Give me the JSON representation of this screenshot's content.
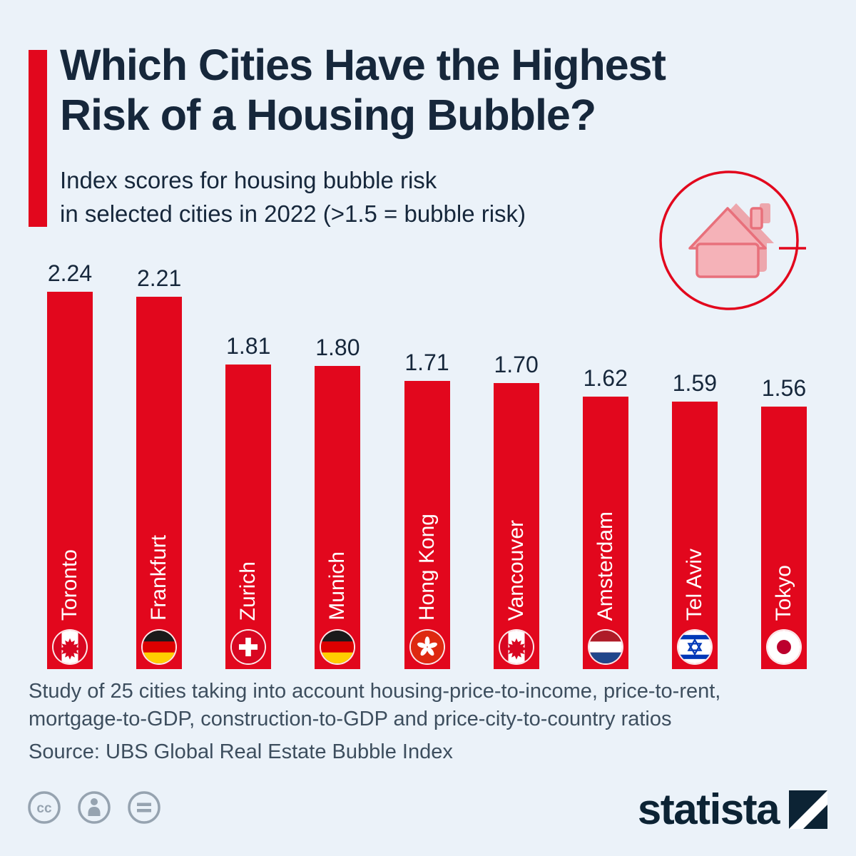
{
  "title": {
    "line1": "Which Cities Have the Highest",
    "line2": "Risk of a Housing Bubble?"
  },
  "subtitle": {
    "line1": "Index scores for housing bubble risk",
    "line2": "in selected cities in 2022 (>1.5 = bubble risk)"
  },
  "chart_data": {
    "type": "bar",
    "title": "Index scores for housing bubble risk in selected cities in 2022",
    "categories": [
      "Toronto",
      "Frankfurt",
      "Zurich",
      "Munich",
      "Hong Kong",
      "Vancouver",
      "Amsterdam",
      "Tel Aviv",
      "Tokyo"
    ],
    "values": [
      2.24,
      2.21,
      1.81,
      1.8,
      1.71,
      1.7,
      1.62,
      1.59,
      1.56
    ],
    "flags": [
      "canada",
      "germany",
      "switzerland",
      "germany",
      "hongkong",
      "canada",
      "netherlands",
      "israel",
      "japan"
    ],
    "bar_color": "#e2071d",
    "ylim": [
      0,
      2.4
    ],
    "threshold_note": ">1.5 = bubble risk",
    "orientation": "vertical",
    "grid": false,
    "legend": false
  },
  "footer": {
    "note": "Study of 25 cities taking into account housing-price-to-income, price-to-rent, mortgage-to-GDP, construction-to-GDP and price-city-to-country ratios",
    "source": "Source: UBS Global Real Estate Bubble Index"
  },
  "branding": {
    "logo_text": "statista"
  },
  "license_icons": [
    "cc-icon",
    "attribution-person-icon",
    "equals-icon"
  ],
  "header_icon": "house-target-icon",
  "colors": {
    "accent_red": "#e2071d",
    "title_navy": "#16273b",
    "background": "#ebf2f9",
    "footer_text": "#3d4e5e",
    "logo_navy": "#0c2334"
  }
}
